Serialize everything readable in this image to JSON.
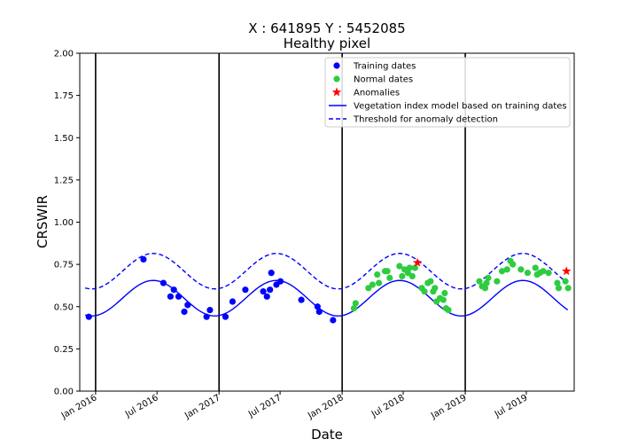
{
  "chart_data": {
    "type": "scatter",
    "title": "X : 641895   Y : 5452085",
    "subtitle": "Healthy pixel",
    "xlabel": "Date",
    "ylabel": "CRSWIR",
    "xlim": [
      "2015-11-15",
      "2019-11-20"
    ],
    "ylim": [
      0,
      2
    ],
    "y_ticks": [
      0.0,
      0.25,
      0.5,
      0.75,
      1.0,
      1.25,
      1.5,
      1.75,
      2.0
    ],
    "y_tick_labels": [
      "0.00",
      "0.25",
      "0.50",
      "0.75",
      "1.00",
      "1.25",
      "1.50",
      "1.75",
      "2.00"
    ],
    "x_ticks": [
      "2016-01-01",
      "2016-07-01",
      "2017-01-01",
      "2017-07-01",
      "2018-01-01",
      "2018-07-01",
      "2019-01-01",
      "2019-07-01"
    ],
    "x_tick_labels": [
      "Jan 2016",
      "Jul 2016",
      "Jan 2017",
      "Jul 2017",
      "Jan 2018",
      "Jul 2018",
      "Jan 2019",
      "Jul 2019"
    ],
    "vertical_lines": [
      "2016-01-01",
      "2017-01-01",
      "2018-01-01",
      "2019-01-01"
    ],
    "grid": false,
    "legend_position": "top-right",
    "colors": {
      "training": "#0000ff",
      "normal": "#2ecc40",
      "anomaly": "#ff0000",
      "model": "#0000ff",
      "threshold": "#0000ff",
      "vline": "#000000"
    },
    "series": [
      {
        "name": "Training dates",
        "kind": "points",
        "points": [
          [
            "2015-12-12",
            0.44
          ],
          [
            "2016-05-22",
            0.78
          ],
          [
            "2016-07-20",
            0.64
          ],
          [
            "2016-08-10",
            0.56
          ],
          [
            "2016-08-20",
            0.6
          ],
          [
            "2016-09-03",
            0.56
          ],
          [
            "2016-09-20",
            0.47
          ],
          [
            "2016-09-30",
            0.51
          ],
          [
            "2016-11-25",
            0.44
          ],
          [
            "2016-12-05",
            0.48
          ],
          [
            "2017-01-20",
            0.44
          ],
          [
            "2017-02-10",
            0.53
          ],
          [
            "2017-03-20",
            0.6
          ],
          [
            "2017-05-12",
            0.59
          ],
          [
            "2017-05-23",
            0.56
          ],
          [
            "2017-06-01",
            0.6
          ],
          [
            "2017-06-05",
            0.7
          ],
          [
            "2017-06-20",
            0.63
          ],
          [
            "2017-07-02",
            0.65
          ],
          [
            "2017-09-02",
            0.54
          ],
          [
            "2017-10-20",
            0.5
          ],
          [
            "2017-10-25",
            0.47
          ],
          [
            "2017-12-05",
            0.42
          ]
        ]
      },
      {
        "name": "Normal dates",
        "kind": "points",
        "points": [
          [
            "2018-02-05",
            0.49
          ],
          [
            "2018-02-10",
            0.52
          ],
          [
            "2018-03-20",
            0.61
          ],
          [
            "2018-04-01",
            0.63
          ],
          [
            "2018-04-15",
            0.69
          ],
          [
            "2018-04-20",
            0.64
          ],
          [
            "2018-05-08",
            0.71
          ],
          [
            "2018-05-15",
            0.71
          ],
          [
            "2018-05-22",
            0.67
          ],
          [
            "2018-06-20",
            0.74
          ],
          [
            "2018-06-28",
            0.68
          ],
          [
            "2018-07-05",
            0.72
          ],
          [
            "2018-07-15",
            0.7
          ],
          [
            "2018-07-20",
            0.73
          ],
          [
            "2018-07-28",
            0.68
          ],
          [
            "2018-08-05",
            0.73
          ],
          [
            "2018-08-25",
            0.61
          ],
          [
            "2018-09-02",
            0.59
          ],
          [
            "2018-09-12",
            0.64
          ],
          [
            "2018-09-20",
            0.65
          ],
          [
            "2018-09-28",
            0.59
          ],
          [
            "2018-10-03",
            0.61
          ],
          [
            "2018-10-08",
            0.53
          ],
          [
            "2018-10-18",
            0.55
          ],
          [
            "2018-10-28",
            0.54
          ],
          [
            "2018-11-01",
            0.58
          ],
          [
            "2018-11-05",
            0.49
          ],
          [
            "2018-11-12",
            0.48
          ],
          [
            "2019-02-12",
            0.65
          ],
          [
            "2019-02-20",
            0.62
          ],
          [
            "2019-03-01",
            0.61
          ],
          [
            "2019-03-05",
            0.64
          ],
          [
            "2019-03-10",
            0.67
          ],
          [
            "2019-04-05",
            0.65
          ],
          [
            "2019-04-20",
            0.71
          ],
          [
            "2019-05-05",
            0.72
          ],
          [
            "2019-05-15",
            0.77
          ],
          [
            "2019-05-22",
            0.75
          ],
          [
            "2019-06-15",
            0.72
          ],
          [
            "2019-07-05",
            0.7
          ],
          [
            "2019-07-28",
            0.73
          ],
          [
            "2019-08-02",
            0.69
          ],
          [
            "2019-08-10",
            0.7
          ],
          [
            "2019-08-20",
            0.71
          ],
          [
            "2019-09-05",
            0.7
          ],
          [
            "2019-10-01",
            0.64
          ],
          [
            "2019-10-05",
            0.61
          ],
          [
            "2019-10-25",
            0.65
          ],
          [
            "2019-11-02",
            0.61
          ]
        ]
      },
      {
        "name": "Anomalies",
        "kind": "stars",
        "points": [
          [
            "2018-08-12",
            0.76
          ],
          [
            "2019-10-28",
            0.71
          ]
        ]
      },
      {
        "name": "Vegetation index model based on training dates",
        "kind": "curve",
        "mean": 0.55,
        "amplitude": 0.105,
        "peak": "2016-06-20",
        "period_days": 365.25,
        "start": "2015-12-01",
        "end": "2019-11-01"
      },
      {
        "name": "Threshold for anomaly detection",
        "kind": "curve-dashed",
        "mean": 0.71,
        "amplitude": 0.105,
        "peak": "2016-06-20",
        "period_days": 365.25,
        "start": "2015-12-01",
        "end": "2019-11-01"
      }
    ],
    "legend": [
      {
        "label": "Training dates",
        "marker": "dot",
        "color": "#0000ff"
      },
      {
        "label": "Normal dates",
        "marker": "dot",
        "color": "#2ecc40"
      },
      {
        "label": "Anomalies",
        "marker": "star",
        "color": "#ff0000"
      },
      {
        "label": "Vegetation index model based on training dates",
        "marker": "line",
        "color": "#0000ff"
      },
      {
        "label": "Threshold for anomaly detection",
        "marker": "dashed-line",
        "color": "#0000ff"
      }
    ]
  }
}
